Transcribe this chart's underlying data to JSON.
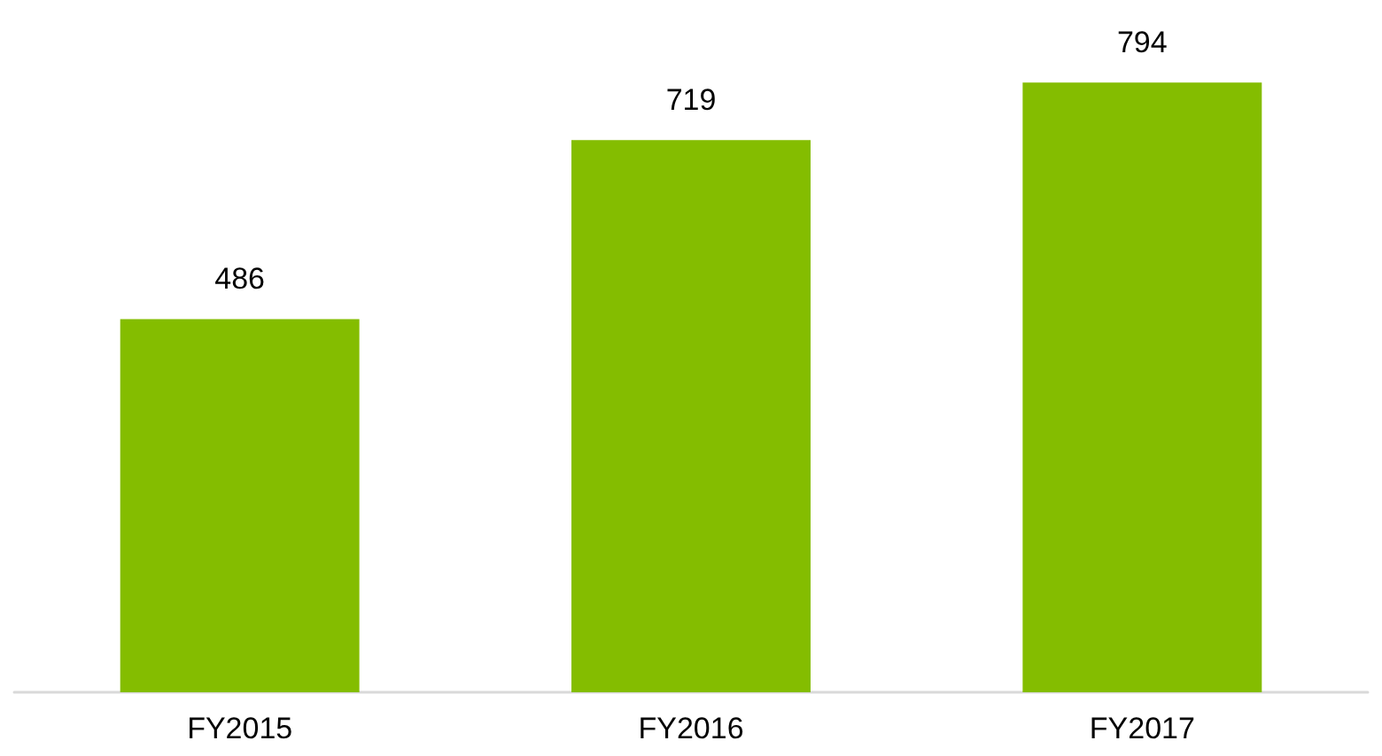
{
  "chart_data": {
    "type": "bar",
    "categories": [
      "FY2015",
      "FY2016",
      "FY2017"
    ],
    "values": [
      486,
      719,
      794
    ],
    "color": "#84bd00",
    "data_labels": true
  }
}
